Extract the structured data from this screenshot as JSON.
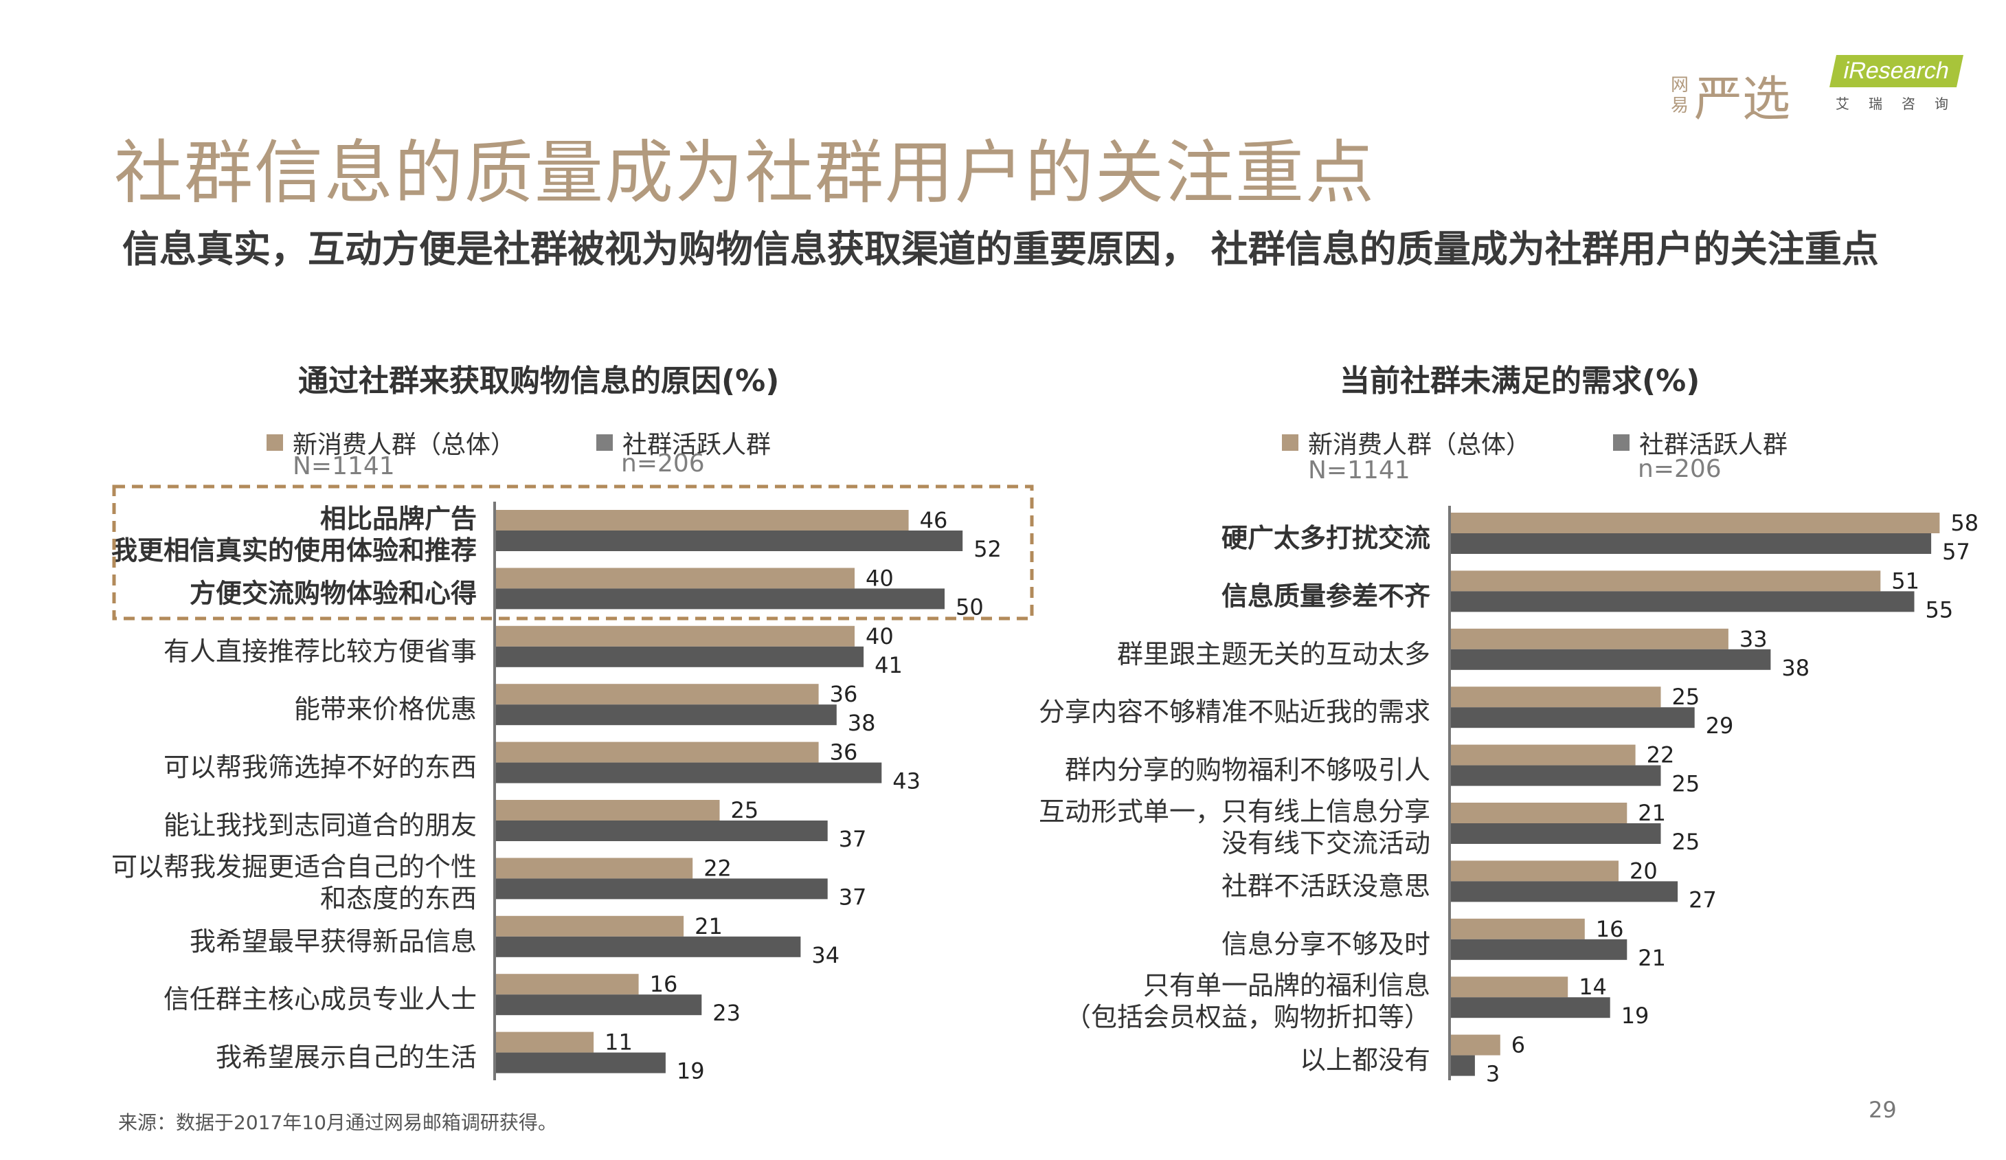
{
  "header": {
    "title": "社群信息的质量成为社群用户的关注重点",
    "subtitle": "信息真实，互动方便是社群被视为购物信息获取渠道的重要原因， 社群信息的质量成为社群用户的关注重点"
  },
  "logos": {
    "netease_small": "网易",
    "netease_big": "严选",
    "iresearch_badge": "iResearch",
    "iresearch_sub": "艾瑞咨询"
  },
  "legend": {
    "series1_label": "新消费人群（总体）",
    "series1_n": "N=1141",
    "series2_label": "社群活跃人群",
    "series2_n": "n=206"
  },
  "colors": {
    "series1": "#b29a7e",
    "series2": "#595959",
    "highlight_box": "#b28a5a",
    "title": "#b29a7e"
  },
  "chart_data": [
    {
      "type": "bar",
      "orientation": "horizontal",
      "title": "通过社群来获取购物信息的原因(%)",
      "categories": [
        "相比品牌广告\n我更相信真实的使用体验和推荐",
        "方便交流购物体验和心得",
        "有人直接推荐比较方便省事",
        "能带来价格优惠",
        "可以帮我筛选掉不好的东西",
        "能让我找到志同道合的朋友",
        "可以帮我发掘更适合自己的个性\n和态度的东西",
        "我希望最早获得新品信息",
        "信任群主核心成员专业人士",
        "我希望展示自己的生活"
      ],
      "bold_categories": [
        0,
        1
      ],
      "highlighted_categories": [
        0,
        1
      ],
      "series": [
        {
          "name": "新消费人群（总体）",
          "values": [
            46,
            40,
            40,
            36,
            36,
            25,
            22,
            21,
            16,
            11
          ]
        },
        {
          "name": "社群活跃人群",
          "values": [
            52,
            50,
            41,
            38,
            43,
            37,
            37,
            34,
            23,
            19
          ]
        }
      ]
    },
    {
      "type": "bar",
      "orientation": "horizontal",
      "title": "当前社群未满足的需求(%)",
      "categories": [
        "硬广太多打扰交流",
        "信息质量参差不齐",
        "群里跟主题无关的互动太多",
        "分享内容不够精准不贴近我的需求",
        "群内分享的购物福利不够吸引人",
        "互动形式单一，只有线上信息分享\n没有线下交流活动",
        "社群不活跃没意思",
        "信息分享不够及时",
        "只有单一品牌的福利信息\n（包括会员权益，购物折扣等）",
        "以上都没有"
      ],
      "bold_categories": [
        0,
        1
      ],
      "highlighted_categories": [],
      "series": [
        {
          "name": "新消费人群（总体）",
          "values": [
            58,
            51,
            33,
            25,
            22,
            21,
            20,
            16,
            14,
            6
          ]
        },
        {
          "name": "社群活跃人群",
          "values": [
            57,
            55,
            38,
            29,
            25,
            25,
            27,
            21,
            19,
            3
          ]
        }
      ]
    }
  ],
  "footer": {
    "source": "来源：数据于2017年10月通过网易邮箱调研获得。",
    "page_number": "29"
  }
}
